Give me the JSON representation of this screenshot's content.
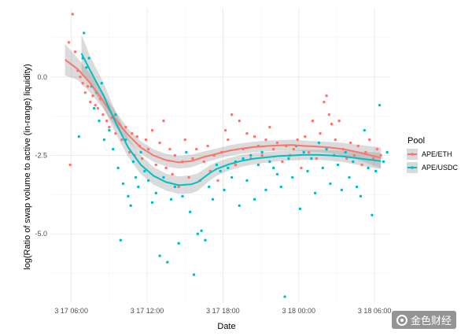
{
  "chart_data": {
    "type": "scatter",
    "title": "",
    "xlabel": "Date",
    "ylabel": "log(Ratio of swap volume to active (in-range) liquidity)",
    "x_unit": "hours since 3 17 06:00",
    "xlim": [
      -1.6,
      25.3
    ],
    "ylim": [
      -7.2,
      2.2
    ],
    "x_ticks": [
      {
        "value": 0,
        "label": "3 17 06:00"
      },
      {
        "value": 6,
        "label": "3 17 12:00"
      },
      {
        "value": 12,
        "label": "3 17 18:00"
      },
      {
        "value": 18,
        "label": "3 18 00:00"
      },
      {
        "value": 24,
        "label": "3 18 06:00"
      }
    ],
    "y_ticks": [
      {
        "value": 0,
        "label": "0.0"
      },
      {
        "value": -2.5,
        "label": "-2.5"
      },
      {
        "value": -5,
        "label": "-5.0"
      }
    ],
    "grid": true,
    "legend": {
      "title": "Pool",
      "position": "right"
    },
    "series": [
      {
        "name": "APE/ETH",
        "color": "#F8766D",
        "points": [
          [
            -0.2,
            1.1
          ],
          [
            -0.1,
            -2.8
          ],
          [
            0.1,
            2.0
          ],
          [
            0.3,
            0.8
          ],
          [
            0.5,
            0.2
          ],
          [
            0.7,
            0.0
          ],
          [
            0.9,
            -0.2
          ],
          [
            1.1,
            -0.5
          ],
          [
            1.3,
            -0.3
          ],
          [
            1.5,
            -0.8
          ],
          [
            1.7,
            -0.6
          ],
          [
            1.9,
            -0.9
          ],
          [
            2.1,
            -1.0
          ],
          [
            2.3,
            -0.7
          ],
          [
            2.5,
            -1.2
          ],
          [
            2.8,
            -1.4
          ],
          [
            3.0,
            -1.6
          ],
          [
            3.2,
            -1.3
          ],
          [
            3.5,
            -1.8
          ],
          [
            3.8,
            -1.5
          ],
          [
            4.0,
            -2.0
          ],
          [
            4.3,
            -1.6
          ],
          [
            4.6,
            -2.4
          ],
          [
            4.8,
            -1.8
          ],
          [
            5.0,
            -2.5
          ],
          [
            5.2,
            -1.9
          ],
          [
            5.4,
            -2.2
          ],
          [
            5.6,
            -2.6
          ],
          [
            5.9,
            -2.0
          ],
          [
            6.1,
            -2.3
          ],
          [
            6.4,
            -1.7
          ],
          [
            6.7,
            -2.8
          ],
          [
            7.0,
            -2.1
          ],
          [
            7.3,
            -1.4
          ],
          [
            7.5,
            -2.9
          ],
          [
            7.8,
            -2.3
          ],
          [
            8.0,
            -3.1
          ],
          [
            8.2,
            -2.5
          ],
          [
            8.5,
            -3.5
          ],
          [
            8.8,
            -2.7
          ],
          [
            9.0,
            -2.0
          ],
          [
            9.3,
            -3.2
          ],
          [
            9.6,
            -2.6
          ],
          [
            9.9,
            -2.3
          ],
          [
            10.2,
            -3.3
          ],
          [
            10.5,
            -2.7
          ],
          [
            10.8,
            -2.2
          ],
          [
            11.0,
            -3.0
          ],
          [
            11.3,
            -2.5
          ],
          [
            11.6,
            -3.3
          ],
          [
            11.9,
            -2.4
          ],
          [
            12.2,
            -1.7
          ],
          [
            12.4,
            -2.0
          ],
          [
            12.7,
            -1.2
          ],
          [
            13.0,
            -2.8
          ],
          [
            13.3,
            -1.4
          ],
          [
            13.6,
            -2.3
          ],
          [
            13.9,
            -1.8
          ],
          [
            14.2,
            -2.6
          ],
          [
            14.5,
            -1.9
          ],
          [
            14.8,
            -2.2
          ],
          [
            15.1,
            -2.5
          ],
          [
            15.4,
            -2.0
          ],
          [
            15.7,
            -1.6
          ],
          [
            16.0,
            -2.3
          ],
          [
            16.3,
            -2.1
          ],
          [
            16.7,
            -2.7
          ],
          [
            17.0,
            -2.2
          ],
          [
            17.3,
            -2.5
          ],
          [
            17.6,
            -2.3
          ],
          [
            17.9,
            -2.0
          ],
          [
            18.2,
            -2.9
          ],
          [
            18.5,
            -1.9
          ],
          [
            18.8,
            -2.4
          ],
          [
            19.1,
            -1.4
          ],
          [
            19.4,
            -2.6
          ],
          [
            19.7,
            -1.8
          ],
          [
            20.0,
            -0.8
          ],
          [
            20.2,
            -0.6
          ],
          [
            20.4,
            -1.2
          ],
          [
            20.6,
            -1.5
          ],
          [
            20.9,
            -2.0
          ],
          [
            21.2,
            -1.4
          ],
          [
            21.5,
            -2.3
          ],
          [
            21.8,
            -2.6
          ],
          [
            22.1,
            -2.1
          ],
          [
            22.4,
            -2.5
          ],
          [
            22.7,
            -2.2
          ],
          [
            23.0,
            -2.8
          ],
          [
            23.3,
            -2.4
          ],
          [
            23.6,
            -2.0
          ],
          [
            23.9,
            -2.6
          ],
          [
            24.2,
            -2.3
          ],
          [
            24.5,
            -2.5
          ]
        ],
        "smooth": [
          [
            -0.5,
            0.55
          ],
          [
            0.5,
            0.25
          ],
          [
            1.5,
            -0.2
          ],
          [
            2.5,
            -0.75
          ],
          [
            3.5,
            -1.35
          ],
          [
            4.5,
            -1.85
          ],
          [
            5.5,
            -2.25
          ],
          [
            6.5,
            -2.5
          ],
          [
            7.5,
            -2.65
          ],
          [
            8.5,
            -2.72
          ],
          [
            9.5,
            -2.68
          ],
          [
            10.5,
            -2.55
          ],
          [
            11.5,
            -2.45
          ],
          [
            12.5,
            -2.35
          ],
          [
            13.5,
            -2.28
          ],
          [
            14.5,
            -2.23
          ],
          [
            15.5,
            -2.2
          ],
          [
            16.5,
            -2.18
          ],
          [
            17.5,
            -2.17
          ],
          [
            18.5,
            -2.2
          ],
          [
            19.5,
            -2.22
          ],
          [
            20.5,
            -2.25
          ],
          [
            21.5,
            -2.3
          ],
          [
            22.5,
            -2.38
          ],
          [
            23.5,
            -2.48
          ],
          [
            24.5,
            -2.58
          ]
        ],
        "band": [
          [
            -0.5,
            1.05,
            0.05
          ],
          [
            0.5,
            0.6,
            -0.1
          ],
          [
            1.5,
            0.1,
            -0.5
          ],
          [
            2.5,
            -0.5,
            -1.0
          ],
          [
            3.5,
            -1.1,
            -1.6
          ],
          [
            4.5,
            -1.65,
            -2.05
          ],
          [
            5.5,
            -2.05,
            -2.45
          ],
          [
            6.5,
            -2.3,
            -2.7
          ],
          [
            7.5,
            -2.45,
            -2.85
          ],
          [
            8.5,
            -2.52,
            -2.92
          ],
          [
            9.5,
            -2.48,
            -2.88
          ],
          [
            10.5,
            -2.37,
            -2.73
          ],
          [
            11.5,
            -2.28,
            -2.62
          ],
          [
            12.5,
            -2.18,
            -2.52
          ],
          [
            13.5,
            -2.11,
            -2.45
          ],
          [
            14.5,
            -2.06,
            -2.4
          ],
          [
            15.5,
            -2.03,
            -2.37
          ],
          [
            16.5,
            -2.01,
            -2.35
          ],
          [
            17.5,
            -2.0,
            -2.34
          ],
          [
            18.5,
            -2.03,
            -2.37
          ],
          [
            19.5,
            -2.05,
            -2.39
          ],
          [
            20.5,
            -2.07,
            -2.43
          ],
          [
            21.5,
            -2.1,
            -2.5
          ],
          [
            22.5,
            -2.15,
            -2.61
          ],
          [
            23.5,
            -2.2,
            -2.76
          ],
          [
            24.5,
            -2.25,
            -2.91
          ]
        ]
      },
      {
        "name": "APE/USDC",
        "color": "#00BFC4",
        "points": [
          [
            0.6,
            -1.9
          ],
          [
            0.9,
            0.6
          ],
          [
            1.0,
            1.4
          ],
          [
            1.2,
            0.3
          ],
          [
            1.4,
            0.6
          ],
          [
            1.6,
            -0.3
          ],
          [
            1.8,
            -1.0
          ],
          [
            2.0,
            -0.5
          ],
          [
            2.2,
            -1.4
          ],
          [
            2.4,
            -0.2
          ],
          [
            2.6,
            -2.0
          ],
          [
            2.8,
            -0.9
          ],
          [
            3.0,
            -1.7
          ],
          [
            3.3,
            -2.3
          ],
          [
            3.5,
            -1.2
          ],
          [
            3.7,
            -2.9
          ],
          [
            3.9,
            -5.2
          ],
          [
            4.1,
            -3.4
          ],
          [
            4.3,
            -2.0
          ],
          [
            4.5,
            -3.8
          ],
          [
            4.7,
            -4.1
          ],
          [
            4.9,
            -2.7
          ],
          [
            5.1,
            -3.2
          ],
          [
            5.3,
            -3.5
          ],
          [
            5.5,
            -2.4
          ],
          [
            5.8,
            -3.0
          ],
          [
            6.1,
            -3.3
          ],
          [
            6.4,
            -4.0
          ],
          [
            6.7,
            -3.7
          ],
          [
            7.0,
            -5.7
          ],
          [
            7.3,
            -3.2
          ],
          [
            7.6,
            -5.9
          ],
          [
            7.9,
            -3.9
          ],
          [
            8.2,
            -3.5
          ],
          [
            8.5,
            -5.3
          ],
          [
            8.8,
            -3.8
          ],
          [
            9.1,
            -2.4
          ],
          [
            9.4,
            -4.3
          ],
          [
            9.7,
            -6.3
          ],
          [
            10.0,
            -5.0
          ],
          [
            10.3,
            -4.9
          ],
          [
            10.6,
            -5.2
          ],
          [
            10.9,
            -3.5
          ],
          [
            11.2,
            -3.9
          ],
          [
            11.5,
            -2.8
          ],
          [
            11.8,
            -3.0
          ],
          [
            12.1,
            -3.6
          ],
          [
            12.4,
            -2.9
          ],
          [
            12.7,
            -3.2
          ],
          [
            13.0,
            -2.7
          ],
          [
            13.3,
            -4.1
          ],
          [
            13.6,
            -2.6
          ],
          [
            13.9,
            -3.3
          ],
          [
            14.2,
            -2.5
          ],
          [
            14.5,
            -3.9
          ],
          [
            14.8,
            -2.8
          ],
          [
            15.1,
            -2.4
          ],
          [
            15.4,
            -3.6
          ],
          [
            15.7,
            -2.7
          ],
          [
            16.0,
            -2.9
          ],
          [
            16.3,
            -3.1
          ],
          [
            16.6,
            -3.5
          ],
          [
            16.9,
            -7.0
          ],
          [
            17.2,
            -2.6
          ],
          [
            17.5,
            -3.2
          ],
          [
            17.8,
            -2.2
          ],
          [
            18.1,
            -4.2
          ],
          [
            18.4,
            -2.4
          ],
          [
            18.7,
            -3.0
          ],
          [
            19.0,
            -2.6
          ],
          [
            19.3,
            -3.7
          ],
          [
            19.6,
            -2.1
          ],
          [
            19.9,
            -2.9
          ],
          [
            20.2,
            -2.3
          ],
          [
            20.5,
            -3.4
          ],
          [
            20.8,
            -2.5
          ],
          [
            21.1,
            -2.8
          ],
          [
            21.4,
            -3.6
          ],
          [
            21.7,
            -2.4
          ],
          [
            22.0,
            -3.2
          ],
          [
            22.3,
            -2.7
          ],
          [
            22.6,
            -3.5
          ],
          [
            22.9,
            -3.8
          ],
          [
            23.2,
            -1.7
          ],
          [
            23.5,
            -2.9
          ],
          [
            23.8,
            -4.4
          ],
          [
            24.1,
            -3.0
          ],
          [
            24.4,
            -0.9
          ],
          [
            24.7,
            -2.7
          ],
          [
            25.0,
            -2.4
          ]
        ],
        "smooth": [
          [
            0.8,
            0.75
          ],
          [
            1.5,
            0.2
          ],
          [
            2.5,
            -0.55
          ],
          [
            3.5,
            -1.45
          ],
          [
            4.5,
            -2.25
          ],
          [
            5.5,
            -2.8
          ],
          [
            6.5,
            -3.15
          ],
          [
            7.5,
            -3.35
          ],
          [
            8.5,
            -3.45
          ],
          [
            9.5,
            -3.42
          ],
          [
            10.0,
            -3.35
          ],
          [
            10.5,
            -3.2
          ],
          [
            11.0,
            -3.05
          ],
          [
            11.5,
            -2.93
          ],
          [
            12.5,
            -2.78
          ],
          [
            13.5,
            -2.67
          ],
          [
            14.5,
            -2.6
          ],
          [
            15.5,
            -2.56
          ],
          [
            16.5,
            -2.52
          ],
          [
            17.5,
            -2.5
          ],
          [
            18.5,
            -2.48
          ],
          [
            19.5,
            -2.48
          ],
          [
            20.5,
            -2.5
          ],
          [
            21.5,
            -2.53
          ],
          [
            22.5,
            -2.58
          ],
          [
            23.5,
            -2.63
          ],
          [
            24.5,
            -2.68
          ]
        ],
        "band": [
          [
            0.8,
            1.35,
            0.15
          ],
          [
            1.5,
            0.65,
            -0.25
          ],
          [
            2.5,
            -0.15,
            -0.95
          ],
          [
            3.5,
            -1.1,
            -1.8
          ],
          [
            4.5,
            -1.95,
            -2.55
          ],
          [
            5.5,
            -2.5,
            -3.1
          ],
          [
            6.5,
            -2.87,
            -3.43
          ],
          [
            7.5,
            -3.08,
            -3.62
          ],
          [
            8.5,
            -3.17,
            -3.73
          ],
          [
            9.5,
            -3.13,
            -3.71
          ],
          [
            10.0,
            -3.07,
            -3.63
          ],
          [
            10.5,
            -2.94,
            -3.46
          ],
          [
            11.0,
            -2.81,
            -3.29
          ],
          [
            11.5,
            -2.71,
            -3.15
          ],
          [
            12.5,
            -2.58,
            -2.98
          ],
          [
            13.5,
            -2.48,
            -2.86
          ],
          [
            14.5,
            -2.42,
            -2.78
          ],
          [
            15.5,
            -2.39,
            -2.73
          ],
          [
            16.5,
            -2.36,
            -2.68
          ],
          [
            17.5,
            -2.34,
            -2.66
          ],
          [
            18.5,
            -2.32,
            -2.64
          ],
          [
            19.5,
            -2.32,
            -2.64
          ],
          [
            20.5,
            -2.33,
            -2.67
          ],
          [
            21.5,
            -2.35,
            -2.71
          ],
          [
            22.5,
            -2.37,
            -2.79
          ],
          [
            23.5,
            -2.39,
            -2.87
          ],
          [
            24.5,
            -2.42,
            -2.94
          ]
        ]
      }
    ]
  },
  "watermark": {
    "text": "金色财经"
  }
}
